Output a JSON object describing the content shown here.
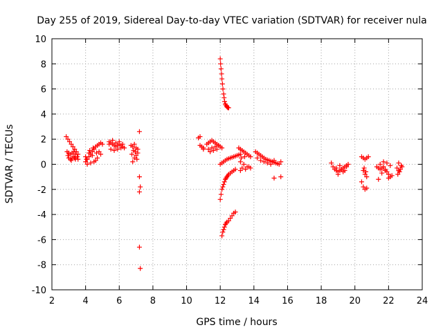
{
  "chart_data": {
    "type": "scatter",
    "title": "Day 255 of 2019, Sidereal Day-to-day VTEC variation (SDTVAR) for receiver nula",
    "xlabel": "GPS time / hours",
    "ylabel": "SDTVAR / TECUs",
    "xlim": [
      2,
      24
    ],
    "ylim": [
      -10,
      10
    ],
    "xticks": [
      2,
      4,
      6,
      8,
      10,
      12,
      14,
      16,
      18,
      20,
      22,
      24
    ],
    "yticks": [
      -10,
      -8,
      -6,
      -4,
      -2,
      0,
      2,
      4,
      6,
      8,
      10
    ],
    "xtick_labels": [
      "2",
      "4",
      "6",
      "8",
      "10",
      "12",
      "14",
      "16",
      "18",
      "20",
      "22",
      "24"
    ],
    "ytick_labels": [
      "-10",
      "-8",
      "-6",
      "-4",
      "-2",
      "0",
      "2",
      "4",
      "6",
      "8",
      "10"
    ],
    "grid": true,
    "marker": "plus",
    "color": "#ff0000",
    "series": [
      {
        "name": "SDTVAR",
        "x": [
          2.85,
          2.95,
          3.05,
          3.15,
          3.25,
          3.35,
          3.45,
          3.55,
          2.9,
          3.0,
          3.1,
          3.2,
          3.3,
          3.4,
          3.5,
          3.0,
          3.1,
          3.2,
          3.3,
          3.4,
          2.95,
          3.15,
          3.35,
          3.55,
          4.0,
          4.1,
          4.2,
          4.3,
          4.4,
          4.5,
          4.6,
          4.7,
          4.8,
          4.9,
          5.0,
          4.1,
          4.3,
          4.5,
          4.7,
          4.9,
          4.0,
          4.2,
          4.4,
          4.6,
          4.8,
          4.05,
          4.25,
          4.45,
          4.65,
          5.4,
          5.5,
          5.6,
          5.7,
          5.8,
          5.9,
          6.0,
          6.1,
          6.2,
          6.3,
          5.5,
          5.7,
          5.9,
          6.1,
          5.4,
          5.6,
          5.8,
          6.0,
          6.2,
          6.7,
          6.8,
          6.9,
          7.0,
          7.1,
          6.75,
          6.95,
          7.05,
          6.8,
          6.9,
          7.0,
          6.85,
          7.1,
          7.2,
          7.2,
          7.25,
          7.2,
          7.2,
          7.25,
          10.7,
          10.8,
          10.9,
          11.0,
          10.8,
          11.0,
          11.2,
          11.3,
          11.4,
          11.5,
          11.6,
          11.7,
          11.8,
          11.9,
          12.0,
          12.1,
          11.3,
          11.5,
          11.7,
          11.9,
          11.4,
          11.6,
          11.8,
          12.0,
          12.02,
          12.05,
          12.08,
          12.1,
          12.13,
          12.16,
          12.2,
          12.23,
          12.26,
          12.3,
          12.34,
          12.38,
          12.42,
          12.46,
          12.5,
          12.0,
          12.1,
          12.2,
          12.3,
          12.4,
          12.5,
          12.6,
          12.7,
          12.8,
          12.9,
          13.0,
          13.1,
          13.2,
          12.0,
          12.05,
          12.1,
          12.15,
          12.2,
          12.25,
          12.3,
          12.35,
          12.4,
          12.45,
          12.5,
          12.6,
          12.7,
          12.8,
          12.9,
          12.1,
          12.15,
          12.2,
          12.25,
          12.3,
          12.35,
          12.4,
          12.5,
          12.6,
          12.7,
          12.8,
          12.9,
          13.1,
          13.2,
          13.3,
          13.4,
          13.5,
          13.6,
          13.7,
          13.8,
          13.2,
          13.4,
          13.6,
          13.8,
          13.2,
          13.3,
          13.5,
          13.7,
          13.25,
          13.45,
          14.1,
          14.2,
          14.3,
          14.4,
          14.5,
          14.6,
          14.7,
          14.8,
          14.9,
          15.0,
          15.1,
          15.2,
          15.3,
          15.4,
          15.5,
          14.2,
          14.4,
          14.6,
          14.8,
          15.0,
          15.2,
          15.6,
          15.2,
          15.6,
          18.6,
          18.7,
          18.8,
          18.9,
          19.0,
          19.1,
          19.2,
          19.3,
          19.4,
          19.5,
          19.6,
          18.9,
          19.1,
          19.3,
          19.5,
          19.0,
          19.2,
          19.4,
          20.4,
          20.5,
          20.6,
          20.7,
          20.8,
          20.5,
          20.6,
          20.7,
          20.4,
          20.5,
          20.6,
          20.7,
          20.55,
          20.65,
          21.3,
          21.4,
          21.5,
          21.6,
          21.7,
          21.8,
          21.9,
          22.0,
          22.1,
          22.2,
          21.5,
          21.7,
          21.9,
          22.1,
          21.6,
          21.8,
          22.0,
          21.4,
          22.5,
          22.6,
          22.7,
          22.8,
          22.55,
          22.65,
          22.75,
          22.6
        ],
        "y": [
          2.2,
          2.0,
          1.8,
          1.6,
          1.4,
          1.2,
          1.0,
          0.8,
          1.0,
          0.9,
          0.8,
          0.9,
          1.0,
          0.8,
          0.6,
          0.5,
          0.4,
          0.5,
          0.6,
          0.4,
          0.7,
          0.3,
          0.5,
          0.4,
          0.2,
          0.4,
          0.6,
          0.8,
          1.0,
          1.2,
          1.4,
          1.5,
          1.6,
          1.7,
          1.6,
          0.0,
          0.1,
          0.2,
          0.5,
          0.8,
          0.6,
          0.9,
          0.7,
          0.3,
          1.0,
          0.4,
          1.1,
          1.3,
          0.9,
          1.6,
          1.7,
          1.6,
          1.5,
          1.4,
          1.5,
          1.6,
          1.5,
          1.4,
          1.3,
          1.2,
          1.1,
          1.2,
          1.3,
          1.8,
          1.9,
          1.7,
          1.8,
          1.6,
          1.5,
          1.4,
          1.6,
          1.3,
          1.2,
          0.8,
          1.0,
          0.4,
          0.2,
          0.5,
          0.7,
          1.1,
          0.9,
          2.6,
          -1.0,
          -1.8,
          -2.2,
          -6.6,
          -8.3,
          2.1,
          2.2,
          1.4,
          1.2,
          1.5,
          1.3,
          1.6,
          1.7,
          1.8,
          1.9,
          1.8,
          1.7,
          1.6,
          1.5,
          1.4,
          1.3,
          1.2,
          1.3,
          1.4,
          1.5,
          1.0,
          1.1,
          1.2,
          8.4,
          8.0,
          7.6,
          7.2,
          6.8,
          6.4,
          6.0,
          5.6,
          5.3,
          5.0,
          4.8,
          4.7,
          4.6,
          4.55,
          4.5,
          4.5,
          0.0,
          0.1,
          0.2,
          0.3,
          0.4,
          0.45,
          0.5,
          0.55,
          0.6,
          0.65,
          0.7,
          0.75,
          0.8,
          -2.8,
          -2.4,
          -2.0,
          -1.8,
          -1.6,
          -1.4,
          -1.2,
          -1.1,
          -1.0,
          -0.9,
          -0.8,
          -0.7,
          -0.6,
          -0.5,
          -0.4,
          -5.7,
          -5.4,
          -5.2,
          -5.0,
          -4.8,
          -4.7,
          -4.6,
          -4.5,
          -4.3,
          -4.1,
          -3.9,
          -3.8,
          1.3,
          1.2,
          1.1,
          1.0,
          0.9,
          0.8,
          0.7,
          0.6,
          0.2,
          0.0,
          -0.2,
          -0.3,
          -0.5,
          -0.3,
          -0.4,
          -0.2,
          0.5,
          0.6,
          1.0,
          0.9,
          0.8,
          0.7,
          0.6,
          0.5,
          0.4,
          0.35,
          0.3,
          0.25,
          0.2,
          0.15,
          0.1,
          0.05,
          0.0,
          0.5,
          0.3,
          0.2,
          0.1,
          0.0,
          -1.1,
          -1.0,
          0.3,
          0.2,
          0.1,
          -0.2,
          -0.4,
          -0.5,
          -0.6,
          -0.5,
          -0.4,
          -0.3,
          -0.2,
          -0.1,
          0.0,
          -0.3,
          -0.1,
          -0.6,
          -0.2,
          -0.8,
          -0.4,
          -0.5,
          0.6,
          0.5,
          0.4,
          0.5,
          0.6,
          -0.5,
          -0.8,
          -1.0,
          -1.4,
          -1.8,
          -2.0,
          -1.9,
          -0.3,
          -0.6,
          -0.2,
          -0.3,
          -0.4,
          -0.3,
          -0.2,
          -0.4,
          -0.6,
          -0.8,
          -1.0,
          -0.9,
          0.0,
          0.2,
          0.1,
          -0.1,
          -0.7,
          -0.5,
          -1.1,
          -1.2,
          -0.3,
          -0.5,
          -0.4,
          -0.2,
          -0.8,
          -0.6,
          -0.1,
          0.1
        ]
      }
    ]
  }
}
